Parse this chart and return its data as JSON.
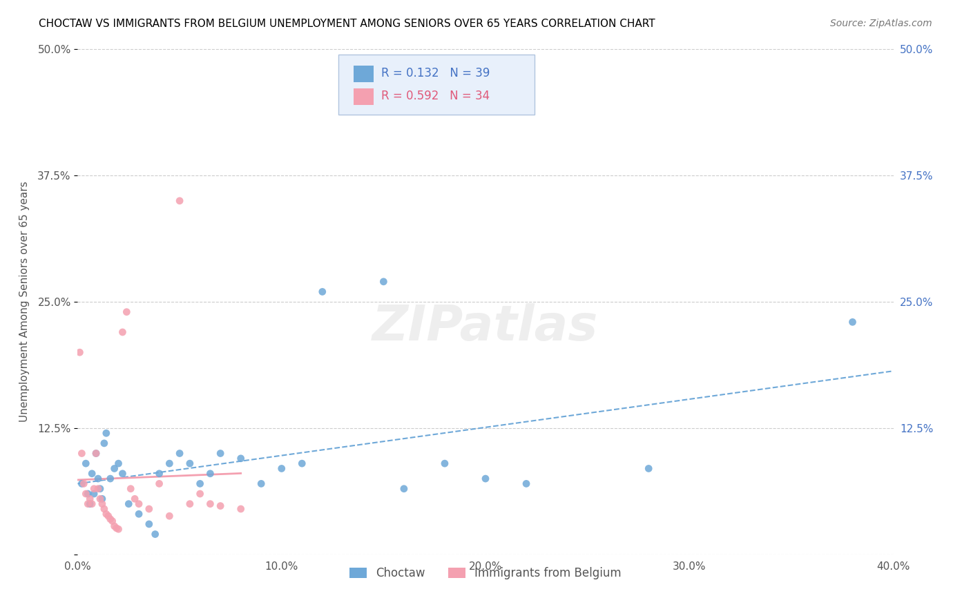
{
  "title": "CHOCTAW VS IMMIGRANTS FROM BELGIUM UNEMPLOYMENT AMONG SENIORS OVER 65 YEARS CORRELATION CHART",
  "source": "Source: ZipAtlas.com",
  "ylabel": "Unemployment Among Seniors over 65 years",
  "xlabel": "",
  "xlim": [
    0.0,
    0.4
  ],
  "ylim": [
    0.0,
    0.5
  ],
  "xticks": [
    0.0,
    0.1,
    0.2,
    0.3,
    0.4
  ],
  "xticklabels": [
    "0.0%",
    "10.0%",
    "20.0%",
    "30.0%",
    "40.0%"
  ],
  "yticks": [
    0.0,
    0.125,
    0.25,
    0.375,
    0.5
  ],
  "yticklabels": [
    "",
    "12.5%",
    "25.0%",
    "37.5%",
    "50.0%"
  ],
  "choctaw_color": "#6ea8d8",
  "belgium_color": "#f4a0b0",
  "choctaw_line_color": "#6ea8d8",
  "belgium_line_color": "#f4a0b0",
  "R_choctaw": 0.132,
  "N_choctaw": 39,
  "R_belgium": 0.592,
  "N_belgium": 34,
  "watermark": "ZIPatlas",
  "choctaw_x": [
    0.002,
    0.004,
    0.005,
    0.006,
    0.007,
    0.008,
    0.009,
    0.01,
    0.011,
    0.012,
    0.013,
    0.014,
    0.016,
    0.018,
    0.02,
    0.022,
    0.025,
    0.03,
    0.035,
    0.038,
    0.04,
    0.045,
    0.05,
    0.055,
    0.06,
    0.065,
    0.07,
    0.08,
    0.09,
    0.1,
    0.11,
    0.12,
    0.15,
    0.16,
    0.18,
    0.2,
    0.22,
    0.28,
    0.38
  ],
  "choctaw_y": [
    0.07,
    0.09,
    0.06,
    0.05,
    0.08,
    0.06,
    0.1,
    0.075,
    0.065,
    0.055,
    0.11,
    0.12,
    0.075,
    0.085,
    0.09,
    0.08,
    0.05,
    0.04,
    0.03,
    0.02,
    0.08,
    0.09,
    0.1,
    0.09,
    0.07,
    0.08,
    0.1,
    0.095,
    0.07,
    0.085,
    0.09,
    0.26,
    0.27,
    0.065,
    0.09,
    0.075,
    0.07,
    0.085,
    0.23
  ],
  "belgium_x": [
    0.001,
    0.002,
    0.003,
    0.004,
    0.005,
    0.006,
    0.007,
    0.008,
    0.009,
    0.01,
    0.011,
    0.012,
    0.013,
    0.014,
    0.015,
    0.016,
    0.017,
    0.018,
    0.019,
    0.02,
    0.022,
    0.024,
    0.026,
    0.028,
    0.03,
    0.035,
    0.04,
    0.045,
    0.05,
    0.055,
    0.06,
    0.065,
    0.07,
    0.08
  ],
  "belgium_y": [
    0.2,
    0.1,
    0.07,
    0.06,
    0.05,
    0.055,
    0.05,
    0.065,
    0.1,
    0.065,
    0.055,
    0.05,
    0.045,
    0.04,
    0.038,
    0.035,
    0.033,
    0.028,
    0.026,
    0.025,
    0.22,
    0.24,
    0.065,
    0.055,
    0.05,
    0.045,
    0.07,
    0.038,
    0.35,
    0.05,
    0.06,
    0.05,
    0.048,
    0.045
  ],
  "legend_box_color": "#e8f0fb",
  "legend_border_color": "#b0c4de"
}
